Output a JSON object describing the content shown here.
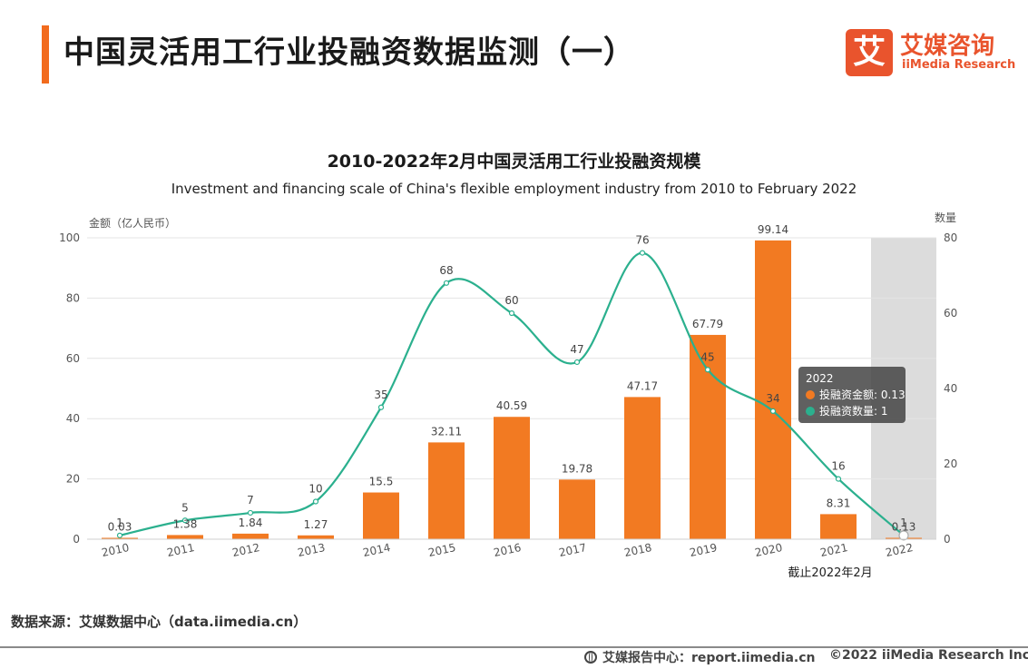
{
  "header": {
    "title": "中国灵活用工行业投融资数据监测（一）",
    "logo_mark": "艾",
    "logo_cn": "艾媒咨询",
    "logo_en": "iiMedia Research"
  },
  "chart_data": {
    "type": "bar",
    "title": "2010-2022年2月中国灵活用工行业投融资规模",
    "subtitle": "Investment and financing scale of China's flexible employment industry from 2010 to February 2022",
    "ylabel": "金额（亿人民币）",
    "y2label": "数量",
    "ylim": [
      0,
      100
    ],
    "y2lim": [
      0,
      80
    ],
    "yticks": [
      0,
      20,
      40,
      60,
      80,
      100
    ],
    "y2ticks": [
      0,
      20,
      40,
      60,
      80
    ],
    "categories": [
      "2010",
      "2011",
      "2012",
      "2013",
      "2014",
      "2015",
      "2016",
      "2017",
      "2018",
      "2019",
      "2020",
      "2021",
      "2022"
    ],
    "series": [
      {
        "name": "投融资金额",
        "type": "bar",
        "axis": "left",
        "labels": [
          "0.03",
          "1.38",
          "1.84",
          "1.27",
          "15.5",
          "32.11",
          "40.59",
          "19.78",
          "47.17",
          "67.79",
          "99.14",
          "8.31",
          "0.13"
        ],
        "values": [
          0.03,
          1.38,
          1.84,
          1.27,
          15.5,
          32.11,
          40.59,
          19.78,
          47.17,
          67.79,
          99.14,
          8.31,
          0.13
        ]
      },
      {
        "name": "投融资数量",
        "type": "line",
        "axis": "right",
        "labels": [
          "1",
          "5",
          "7",
          "10",
          "35",
          "68",
          "60",
          "47",
          "76",
          "45",
          "34",
          "16",
          "1"
        ],
        "values": [
          1,
          5,
          7,
          10,
          35,
          68,
          60,
          47,
          76,
          45,
          34,
          16,
          1
        ]
      }
    ],
    "highlight_category": "2022",
    "note": "截止2022年2月",
    "tooltip": {
      "title": "2022",
      "amount_label": "投融资金额: 0.13",
      "count_label": "投融资数量: 1"
    }
  },
  "colors": {
    "accent": "#f26b1d",
    "bar": "#f27a22",
    "line": "#2bb08e",
    "highlight_band": "#dcdcdc",
    "grid": "#e4e4e4"
  },
  "footer": {
    "source": "数据来源：艾媒数据中心（data.iimedia.cn）",
    "report_center": "艾媒报告中心：report.iimedia.cn",
    "copyright": "©2022  iiMedia Research  Inc"
  }
}
